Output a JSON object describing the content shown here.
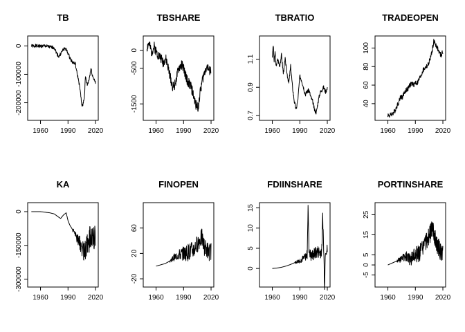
{
  "chart_data": [
    {
      "type": "line",
      "title": "TB",
      "xlabel": "",
      "ylabel": "",
      "xlim": [
        1946,
        2023
      ],
      "ylim": [
        -262000,
        35000
      ],
      "xticks": [
        1960,
        1990,
        2020
      ],
      "xtick_labels": [
        "1960",
        "1990",
        "2020"
      ],
      "yticks": [
        0,
        -100000,
        -200000
      ],
      "ytick_labels": [
        "0",
        "-100000",
        "-200000"
      ],
      "series": [
        {
          "noise": 0.02,
          "seed": 1,
          "x": [
            1950,
            1955,
            1960,
            1965,
            1970,
            1975,
            1978,
            1980,
            1983,
            1985,
            1987,
            1990,
            1992,
            1995,
            1998,
            2000,
            2001,
            2003,
            2005,
            2006,
            2008,
            2009,
            2011,
            2013,
            2015,
            2017,
            2019,
            2020
          ],
          "y": [
            0,
            0,
            -1000,
            0,
            -4000,
            -6000,
            -28000,
            -38000,
            -22000,
            -12000,
            -8000,
            -26000,
            -42000,
            -58000,
            -63000,
            -100000,
            -112000,
            -150000,
            -208000,
            -212000,
            -175000,
            -108000,
            -138000,
            -118000,
            -80000,
            -108000,
            -120000,
            -132000
          ]
        }
      ]
    },
    {
      "type": "line",
      "title": "TBSHARE",
      "xlabel": "",
      "ylabel": "",
      "xlim": [
        1946,
        2023
      ],
      "ylim": [
        -1960,
        400
      ],
      "xticks": [
        1960,
        1990,
        2020
      ],
      "xtick_labels": [
        "1960",
        "1990",
        "2020"
      ],
      "yticks": [
        0,
        -500,
        -1500
      ],
      "ytick_labels": [
        "0",
        "-500",
        "-1500"
      ],
      "series": [
        {
          "noise": 0.06,
          "seed": 2,
          "x": [
            1950,
            1952,
            1955,
            1958,
            1960,
            1962,
            1965,
            1968,
            1970,
            1972,
            1975,
            1978,
            1980,
            1983,
            1985,
            1988,
            1990,
            1992,
            1995,
            1998,
            2000,
            2003,
            2006,
            2008,
            2010,
            2012,
            2014,
            2016,
            2018,
            2020
          ],
          "y": [
            60,
            200,
            -50,
            100,
            -20,
            -120,
            -200,
            -350,
            -220,
            -350,
            -700,
            -1000,
            -1000,
            -700,
            -500,
            -400,
            -500,
            -700,
            -900,
            -1000,
            -1200,
            -1500,
            -1600,
            -1200,
            -900,
            -700,
            -500,
            -450,
            -600,
            -560
          ]
        }
      ]
    },
    {
      "type": "line",
      "title": "TBRATIO",
      "xlabel": "",
      "ylabel": "",
      "xlim": [
        1946,
        2023
      ],
      "ylim": [
        0.665,
        1.265
      ],
      "xticks": [
        1960,
        1990,
        2020
      ],
      "xtick_labels": [
        "1960",
        "1990",
        "2020"
      ],
      "yticks": [
        0.7,
        0.9,
        1.1
      ],
      "ytick_labels": [
        "0.7",
        "0.9",
        "1.1"
      ],
      "series": [
        {
          "noise": 0.025,
          "seed": 3,
          "x": [
            1960,
            1961,
            1962,
            1963,
            1964,
            1966,
            1968,
            1970,
            1972,
            1974,
            1976,
            1978,
            1980,
            1982,
            1984,
            1986,
            1988,
            1990,
            1992,
            1994,
            1996,
            1998,
            2000,
            2002,
            2004,
            2006,
            2008,
            2010,
            2012,
            2014,
            2016,
            2018,
            2020
          ],
          "y": [
            1.12,
            1.2,
            1.08,
            1.15,
            1.05,
            1.1,
            1.05,
            1.13,
            1.0,
            1.1,
            1.0,
            0.93,
            1.05,
            0.9,
            0.8,
            0.74,
            0.82,
            0.98,
            0.95,
            0.9,
            0.85,
            0.87,
            0.88,
            0.83,
            0.8,
            0.74,
            0.72,
            0.8,
            0.86,
            0.88,
            0.9,
            0.87,
            0.89
          ]
        }
      ]
    },
    {
      "type": "line",
      "title": "TRADEOPEN",
      "xlabel": "",
      "ylabel": "",
      "xlim": [
        1946,
        2023
      ],
      "ylim": [
        22,
        113
      ],
      "xticks": [
        1960,
        1990,
        2020
      ],
      "xtick_labels": [
        "1960",
        "1990",
        "2020"
      ],
      "yticks": [
        40,
        60,
        80,
        100
      ],
      "ytick_labels": [
        "40",
        "60",
        "80",
        "100"
      ],
      "series": [
        {
          "noise": 0.03,
          "seed": 4,
          "x": [
            1960,
            1962,
            1964,
            1966,
            1968,
            1970,
            1972,
            1974,
            1976,
            1978,
            1980,
            1982,
            1984,
            1986,
            1988,
            1990,
            1992,
            1994,
            1996,
            1998,
            2000,
            2002,
            2004,
            2006,
            2008,
            2010,
            2012,
            2014,
            2016,
            2018,
            2020
          ],
          "y": [
            28,
            27,
            29,
            30,
            33,
            38,
            42,
            48,
            47,
            52,
            55,
            56,
            60,
            62,
            60,
            63,
            62,
            66,
            70,
            75,
            78,
            80,
            82,
            88,
            95,
            107,
            104,
            100,
            95,
            92,
            96
          ]
        }
      ]
    },
    {
      "type": "line",
      "title": "KA",
      "xlabel": "",
      "ylabel": "",
      "xlim": [
        1946,
        2023
      ],
      "ylim": [
        -335000,
        40000
      ],
      "xticks": [
        1960,
        1990,
        2020
      ],
      "xtick_labels": [
        "1960",
        "1990",
        "2020"
      ],
      "yticks": [
        0,
        -150000,
        -300000
      ],
      "ytick_labels": [
        "0",
        "-150000",
        "-300000"
      ],
      "series": [
        {
          "noise": 0.0,
          "seed": 5,
          "osc": 60000,
          "osc_start": 1995,
          "x": [
            1950,
            1960,
            1970,
            1975,
            1980,
            1982,
            1985,
            1988,
            1990,
            1992,
            1995,
            1998,
            2000,
            2003,
            2006,
            2008,
            2010,
            2012,
            2014,
            2016,
            2018,
            2020
          ],
          "y": [
            0,
            0,
            -5000,
            -10000,
            -25000,
            -30000,
            -15000,
            -5000,
            -40000,
            -60000,
            -80000,
            -100000,
            -120000,
            -140000,
            -170000,
            -180000,
            -160000,
            -140000,
            -120000,
            -100000,
            -130000,
            -110000
          ]
        }
      ]
    },
    {
      "type": "line",
      "title": "FINOPEN",
      "xlabel": "",
      "ylabel": "",
      "xlim": [
        1946,
        2023
      ],
      "ylim": [
        -33,
        100
      ],
      "xticks": [
        1960,
        1990,
        2020
      ],
      "xtick_labels": [
        "1960",
        "1990",
        "2020"
      ],
      "yticks": [
        -20,
        20,
        60
      ],
      "ytick_labels": [
        "-20",
        "20",
        "60"
      ],
      "series": [
        {
          "noise": 0.0,
          "seed": 6,
          "osc": 14,
          "osc_start": 1975,
          "x": [
            1960,
            1965,
            1970,
            1975,
            1980,
            1985,
            1990,
            1995,
            2000,
            2003,
            2006,
            2008,
            2010,
            2012,
            2014,
            2016,
            2018,
            2020
          ],
          "y": [
            0,
            2,
            4,
            8,
            14,
            18,
            20,
            22,
            25,
            30,
            38,
            42,
            45,
            32,
            28,
            25,
            22,
            24
          ]
        }
      ]
    },
    {
      "type": "line",
      "title": "FDIINSHARE",
      "xlabel": "",
      "ylabel": "",
      "xlim": [
        1946,
        2023
      ],
      "ylim": [
        -4.6,
        16.3
      ],
      "xticks": [
        1960,
        1990,
        2020
      ],
      "xtick_labels": [
        "1960",
        "1990",
        "2020"
      ],
      "yticks": [
        0,
        5,
        10,
        15
      ],
      "ytick_labels": [
        "0",
        "5",
        "10",
        "15"
      ],
      "series": [
        {
          "noise": 0.0,
          "seed": 7,
          "osc": 1.6,
          "osc_start": 1985,
          "x": [
            1960,
            1965,
            1970,
            1975,
            1980,
            1985,
            1990,
            1995,
            1998,
            1999,
            2000,
            2002,
            2005,
            2008,
            2010,
            2012,
            2014,
            2015,
            2016,
            2017,
            2018,
            2020
          ],
          "y": [
            0,
            0.1,
            0.3,
            0.6,
            1.0,
            1.5,
            2.0,
            2.6,
            3.5,
            15.4,
            5.0,
            3.0,
            3.5,
            4.0,
            4.2,
            4.0,
            4.5,
            13.5,
            5.0,
            -4.0,
            5.0,
            4.5
          ]
        }
      ]
    },
    {
      "type": "line",
      "title": "PORTINSHARE",
      "xlabel": "",
      "ylabel": "",
      "xlim": [
        1946,
        2023
      ],
      "ylim": [
        -11,
        31
      ],
      "xticks": [
        1960,
        1990,
        2020
      ],
      "xtick_labels": [
        "1960",
        "1990",
        "2020"
      ],
      "yticks": [
        -5,
        0,
        5,
        15,
        25
      ],
      "ytick_labels": [
        "-5",
        "0",
        "5",
        "15",
        "25"
      ],
      "series": [
        {
          "noise": 0.0,
          "seed": 8,
          "osc": 4.5,
          "osc_start": 1970,
          "x": [
            1960,
            1965,
            1970,
            1975,
            1980,
            1985,
            1990,
            1995,
            2000,
            2005,
            2008,
            2010,
            2012,
            2014,
            2016,
            2018,
            2020
          ],
          "y": [
            0,
            1,
            2,
            3,
            4,
            3,
            5,
            6,
            10,
            14,
            18,
            17,
            12,
            10,
            8,
            6,
            5
          ]
        }
      ]
    }
  ]
}
